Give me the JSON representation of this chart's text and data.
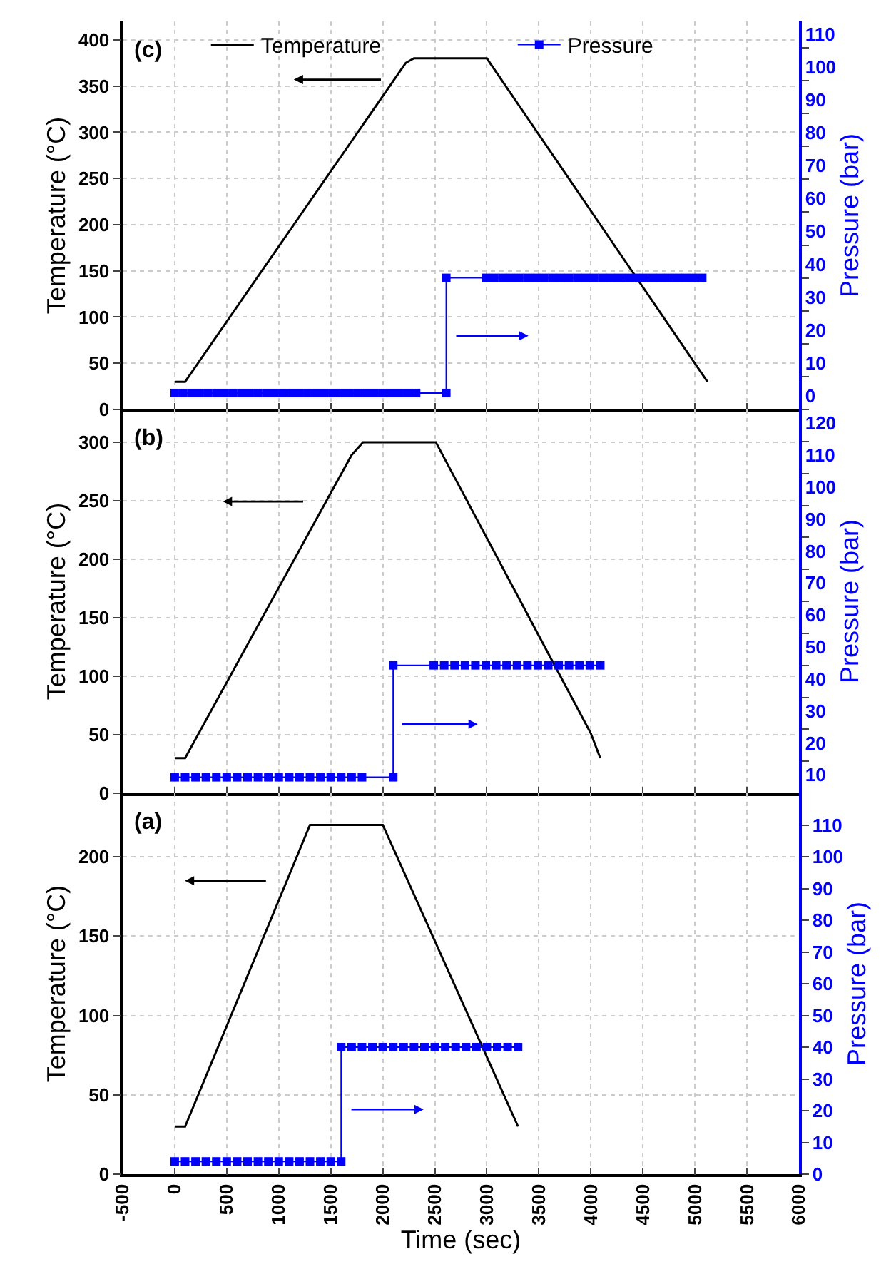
{
  "chart_data": [
    {
      "type": "line",
      "annotations": [
        "(c)"
      ],
      "xlim": [
        -500,
        6000
      ],
      "xticks": [
        -500,
        0,
        500,
        1000,
        1500,
        2000,
        2500,
        3000,
        3500,
        4000,
        4500,
        5000,
        5500,
        6000
      ],
      "ylabel": "Temperature (°C)",
      "y2label": "Pressure (bar)",
      "ylim": [
        0,
        420
      ],
      "yticks": [
        0,
        50,
        100,
        150,
        200,
        250,
        300,
        350,
        400
      ],
      "y2lim": [
        0,
        118
      ],
      "y2ticks": [
        0,
        10,
        20,
        30,
        40,
        50,
        60,
        70,
        80,
        90,
        100,
        110
      ],
      "grid": true,
      "legend": "top",
      "tick_labels": "y",
      "series": [
        {
          "name": "Temperature",
          "color": "#000000",
          "marker": "none",
          "x": [
            0,
            100,
            2220,
            2300,
            3000,
            5120
          ],
          "values": [
            30,
            30,
            375,
            380,
            380,
            30
          ]
        },
        {
          "name": "Pressure",
          "color": "#0000ff",
          "axis": "y2",
          "marker": "square",
          "x": [
            0,
            80,
            160,
            240,
            320,
            400,
            480,
            560,
            640,
            720,
            800,
            880,
            960,
            1040,
            1120,
            1200,
            1280,
            1360,
            1440,
            1520,
            1600,
            1680,
            1760,
            1840,
            1920,
            2000,
            2080,
            2160,
            2240,
            2320,
            2610,
            2610,
            2990,
            3070,
            3150,
            3230,
            3310,
            3390,
            3470,
            3550,
            3630,
            3710,
            3790,
            3870,
            3950,
            4030,
            4110,
            4190,
            4270,
            4350,
            4430,
            4510,
            4590,
            4670,
            4750,
            4830,
            4910,
            4990,
            5070
          ],
          "values": [
            5,
            5,
            5,
            5,
            5,
            5,
            5,
            5,
            5,
            5,
            5,
            5,
            5,
            5,
            5,
            5,
            5,
            5,
            5,
            5,
            5,
            5,
            5,
            5,
            5,
            5,
            5,
            5,
            5,
            5,
            5,
            40,
            40,
            40,
            40,
            40,
            40,
            40,
            40,
            40,
            40,
            40,
            40,
            40,
            40,
            40,
            40,
            40,
            40,
            40,
            40,
            40,
            40,
            40,
            40,
            40,
            40,
            40,
            40
          ]
        }
      ]
    },
    {
      "type": "line",
      "annotations": [
        "(b)"
      ],
      "xlim": [
        -500,
        6000
      ],
      "xticks": [
        -500,
        0,
        500,
        1000,
        1500,
        2000,
        2500,
        3000,
        3500,
        4000,
        4500,
        5000,
        5500,
        6000
      ],
      "ylabel": "Temperature (°C)",
      "y2label": "Pressure (bar)",
      "ylim": [
        0,
        328
      ],
      "yticks": [
        0,
        50,
        100,
        150,
        200,
        250,
        300
      ],
      "y2lim": [
        0,
        120
      ],
      "y2ticks": [
        10,
        20,
        30,
        40,
        50,
        60,
        70,
        80,
        90,
        100,
        110,
        120
      ],
      "grid": true,
      "tick_labels": "y",
      "series": [
        {
          "color": "#000000",
          "marker": "none",
          "x": [
            0,
            100,
            1700,
            1810,
            2510,
            4000,
            4090
          ],
          "values": [
            30,
            30,
            289,
            300,
            300,
            51,
            30
          ]
        },
        {
          "color": "#0000ff",
          "axis": "y2",
          "marker": "square",
          "x": [
            0,
            100,
            200,
            300,
            400,
            500,
            600,
            700,
            800,
            900,
            1000,
            1100,
            1200,
            1300,
            1400,
            1500,
            1600,
            1700,
            1800,
            2100,
            2100,
            2490,
            2590,
            2690,
            2790,
            2890,
            2990,
            3090,
            3190,
            3290,
            3390,
            3490,
            3590,
            3690,
            3790,
            3890,
            3990,
            4090
          ],
          "values": [
            5,
            5,
            5,
            5,
            5,
            5,
            5,
            5,
            5,
            5,
            5,
            5,
            5,
            5,
            5,
            5,
            5,
            5,
            5,
            5,
            40,
            40,
            40,
            40,
            40,
            40,
            40,
            40,
            40,
            40,
            40,
            40,
            40,
            40,
            40,
            40,
            40,
            40
          ]
        }
      ]
    },
    {
      "type": "line",
      "annotations": [
        "(a)"
      ],
      "xlabel": "Time (sec)",
      "xlim": [
        -500,
        6000
      ],
      "xticks": [
        -500,
        0,
        500,
        1000,
        1500,
        2000,
        2500,
        3000,
        3500,
        4000,
        4500,
        5000,
        5500,
        6000
      ],
      "ylabel": "Temperature (°C)",
      "y2label": "Pressure (bar)",
      "ylim": [
        0,
        240
      ],
      "yticks": [
        0,
        50,
        100,
        150,
        200
      ],
      "y2lim": [
        0,
        120
      ],
      "y2ticks": [
        0,
        10,
        20,
        30,
        40,
        50,
        60,
        70,
        80,
        90,
        100,
        110
      ],
      "grid": true,
      "series": [
        {
          "color": "#000000",
          "marker": "none",
          "x": [
            0,
            100,
            1300,
            2000,
            3300
          ],
          "values": [
            30,
            30,
            220,
            220,
            30
          ]
        },
        {
          "color": "#0000ff",
          "axis": "y2",
          "marker": "square",
          "x": [
            0,
            100,
            200,
            300,
            400,
            500,
            600,
            700,
            800,
            900,
            1000,
            1100,
            1200,
            1300,
            1400,
            1500,
            1600,
            1600,
            1700,
            1800,
            1900,
            2000,
            2100,
            2200,
            2300,
            2400,
            2500,
            2600,
            2700,
            2800,
            2900,
            3000,
            3100,
            3200,
            3300
          ],
          "values": [
            4,
            4,
            4,
            4,
            4,
            4,
            4,
            4,
            4,
            4,
            4,
            4,
            4,
            4,
            4,
            4,
            4,
            40,
            40,
            40,
            40,
            40,
            40,
            40,
            40,
            40,
            40,
            40,
            40,
            40,
            40,
            40,
            40,
            40,
            40
          ]
        }
      ]
    }
  ]
}
